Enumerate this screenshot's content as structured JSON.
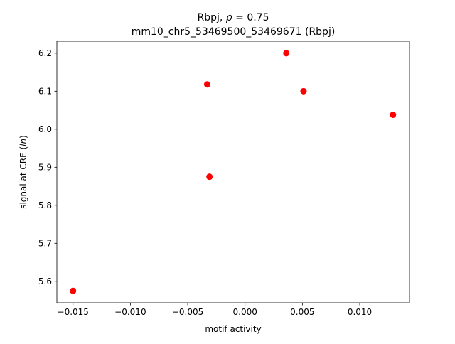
{
  "chart_data": {
    "type": "scatter",
    "title_lines": [
      "Rbpj, ρ = 0.75",
      "mm10_chr5_53469500_53469671 (Rbpj)"
    ],
    "title_rho_prefix": "Rbpj, ",
    "title_rho_symbol": "ρ",
    "title_rho_suffix": " = 0.75",
    "title_line2": "mm10_chr5_53469500_53469671 (Rbpj)",
    "xlabel": "motif activity",
    "ylabel_prefix": "signal at CRE (",
    "ylabel_italic": "ln",
    "ylabel_suffix": ")",
    "xlim": [
      -0.01641,
      0.01434
    ],
    "ylim": [
      5.5435,
      6.2315
    ],
    "xticks": [
      -0.015,
      -0.01,
      -0.005,
      0.0,
      0.005,
      0.01
    ],
    "xtick_labels": [
      "−0.015",
      "−0.010",
      "−0.005",
      "0.000",
      "0.005",
      "0.010"
    ],
    "yticks": [
      5.6,
      5.7,
      5.8,
      5.9,
      6.0,
      6.1,
      6.2
    ],
    "ytick_labels": [
      "5.6",
      "5.7",
      "5.8",
      "5.9",
      "6.0",
      "6.1",
      "6.2"
    ],
    "grid": false,
    "marker_color": "#ff0000",
    "points": [
      {
        "x": -0.015,
        "y": 5.575
      },
      {
        "x": -0.0033,
        "y": 6.118
      },
      {
        "x": -0.0031,
        "y": 5.875
      },
      {
        "x": 0.0036,
        "y": 6.2
      },
      {
        "x": 0.0051,
        "y": 6.1
      },
      {
        "x": 0.0129,
        "y": 6.038
      }
    ]
  }
}
